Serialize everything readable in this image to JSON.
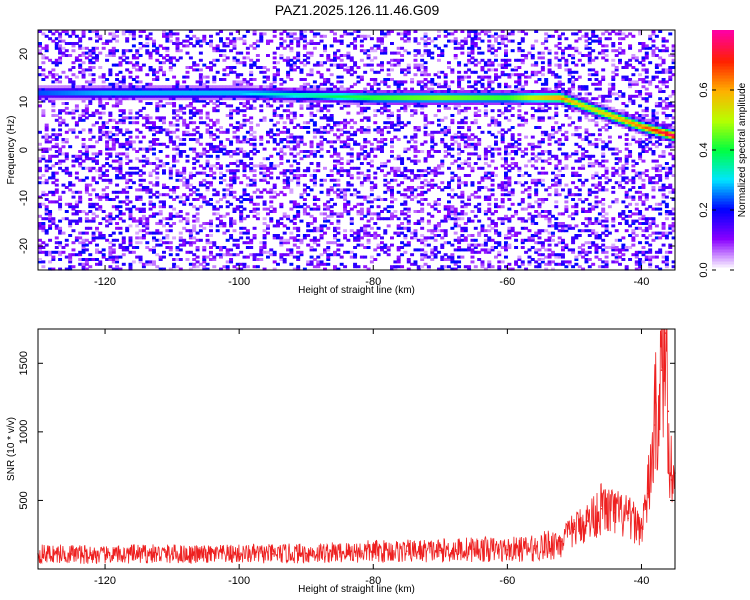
{
  "title": "PAZ1.2025.126.11.46.G09",
  "chart_data": [
    {
      "type": "heatmap",
      "xlabel": "Height of straight line (km)",
      "ylabel": "Frequency (Hz)",
      "xlim": [
        -130,
        -35
      ],
      "ylim": [
        -25,
        25
      ],
      "xticks": [
        -120,
        -100,
        -80,
        -60,
        -40
      ],
      "yticks": [
        -20,
        -10,
        0,
        10,
        20
      ],
      "colorbar": {
        "label": "Normalized spectral amplitude",
        "range": [
          0,
          0.8
        ],
        "ticks": [
          0.0,
          0.2,
          0.4,
          0.6
        ],
        "colormap": [
          "#ffffff",
          "#8a00ff",
          "#0000ff",
          "#00e5ff",
          "#00ff40",
          "#b8ff00",
          "#ffb000",
          "#ff2000",
          "#ff00a0"
        ]
      },
      "ridge": {
        "x": [
          -130,
          -120,
          -110,
          -100,
          -90,
          -80,
          -70,
          -60,
          -52,
          -48,
          -44,
          -40,
          -35
        ],
        "frequency": [
          12,
          12,
          12,
          12,
          11.5,
          11,
          11,
          11,
          11,
          9,
          7,
          5,
          3
        ],
        "amplitude": [
          0.25,
          0.3,
          0.3,
          0.3,
          0.35,
          0.45,
          0.5,
          0.45,
          0.65,
          0.55,
          0.6,
          0.65,
          0.8
        ]
      }
    },
    {
      "type": "line",
      "xlabel": "Height of straight line (km)",
      "ylabel": "SNR (10 * v/v)",
      "xlim": [
        -130,
        -35
      ],
      "ylim": [
        0,
        1750
      ],
      "xticks": [
        -120,
        -100,
        -80,
        -60,
        -40
      ],
      "yticks": [
        500,
        1000,
        1500
      ],
      "series": [
        {
          "color": "#ee2020",
          "x": [
            -130,
            -125,
            -120,
            -115,
            -110,
            -105,
            -100,
            -95,
            -90,
            -85,
            -80,
            -75,
            -70,
            -65,
            -60,
            -56,
            -52,
            -50,
            -48,
            -46,
            -44,
            -42,
            -40,
            -39,
            -38,
            -37,
            -36.5,
            -36,
            -35.5,
            -35
          ],
          "y": [
            110,
            110,
            100,
            110,
            110,
            105,
            110,
            110,
            115,
            120,
            130,
            130,
            135,
            145,
            140,
            150,
            200,
            290,
            350,
            440,
            410,
            370,
            300,
            550,
            1050,
            1450,
            1720,
            1150,
            650,
            700
          ]
        }
      ]
    }
  ]
}
